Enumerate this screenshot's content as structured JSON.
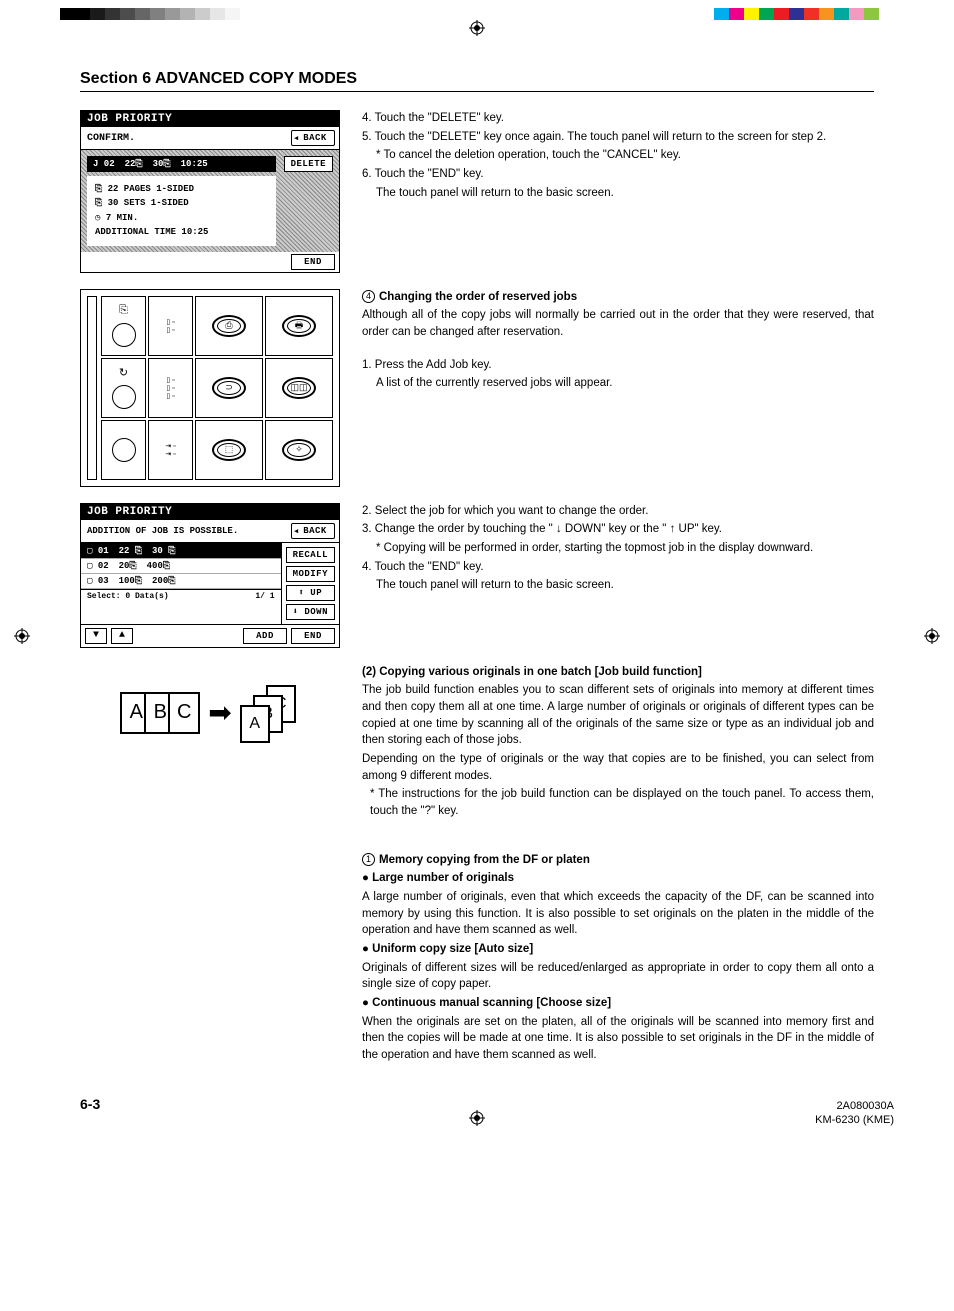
{
  "colorbar": {
    "left": [
      "#000000",
      "#000000",
      "#1a1a1a",
      "#333333",
      "#4d4d4d",
      "#666666",
      "#808080",
      "#999999",
      "#b3b3b3",
      "#cccccc",
      "#e6e6e6",
      "#f5f5f5",
      "#ffffff",
      "#ffffff"
    ],
    "right": [
      "#00aeef",
      "#ec008c",
      "#fff200",
      "#00a651",
      "#ed1c24",
      "#2e3192",
      "#ee3124",
      "#f7941d",
      "#00a99d",
      "#f49ac1",
      "#8dc63f",
      "#ffffff"
    ]
  },
  "section_title": "Section 6  ADVANCED COPY MODES",
  "lcd1": {
    "header": "JOB  PRIORITY",
    "subhead": "CONFIRM.",
    "back": "BACK",
    "row": {
      "j": "J 02",
      "p": "22⎘",
      "s": "30⎘",
      "t": "10:25"
    },
    "delete_btn": "DELETE",
    "info": {
      "l1": "⎘  22 PAGES     1-SIDED",
      "l2": "⎘  30 SETS       1-SIDED",
      "l3": "◷   7 MIN.",
      "l4": "ADDITIONAL TIME  10:25"
    },
    "end_btn": "END"
  },
  "steps_a": {
    "s4": "4. Touch the \"DELETE\" key.",
    "s5": "5. Touch the \"DELETE\" key once again. The touch panel will return to the screen for step 2.",
    "s5n": "* To cancel the deletion operation, touch the \"CANCEL\" key.",
    "s6": "6. Touch the \"END\" key.",
    "s6n": "The touch panel will return to the basic screen."
  },
  "sec4": {
    "num": "4",
    "title": "Changing the order of reserved jobs",
    "p1": "Although all of the copy jobs will normally be carried out in the order that they were reserved, that order can be changed after reservation.",
    "s1": "1. Press the Add Job key.",
    "s1n": "A list of the currently reserved jobs will appear."
  },
  "lcd2": {
    "header": "JOB  PRIORITY",
    "subhead": "ADDITION OF JOB IS POSSIBLE.",
    "back": "BACK",
    "rows": [
      {
        "id": "▢ 01",
        "a": "22 ⎘",
        "b": "30 ⎘",
        "sel": true
      },
      {
        "id": "▢ 02",
        "a": "20⎘",
        "b": "400⎘",
        "sel": false
      },
      {
        "id": "▢ 03",
        "a": "100⎘",
        "b": "200⎘",
        "sel": false
      }
    ],
    "btns": {
      "recall": "RECALL",
      "modify": "MODIFY",
      "up": "⬆  UP",
      "down": "⬇ DOWN",
      "end": "END",
      "add": "ADD"
    },
    "select_line": {
      "l": "Select:    0 Data(s)",
      "r": "1/ 1"
    }
  },
  "steps_b": {
    "s2": "2. Select the job for which you want to change the order.",
    "s3": "3. Change the order by touching the \" ↓  DOWN\" key or the \" ↑  UP\" key.",
    "s3n": "* Copying will be performed in order, starting the topmost job in the display downward.",
    "s4": "4. Touch the \"END\" key.",
    "s4n": "The touch panel will return to the basic screen."
  },
  "sec2": {
    "title": "(2) Copying various originals in one batch [Job build function]",
    "p1": "The job build function enables you to scan different sets of originals into memory at different times and then copy them all at one time. A large number of originals or originals of different types can be copied at one time by scanning all of the originals of the same size or type as an individual job and then storing each of those jobs.",
    "p2": "Depending on the type of originals or the way that copies are to be finished, you can select from among 9 different modes.",
    "p3": "* The instructions for the job build function can be displayed on the touch panel. To access them, touch the \"?\" key."
  },
  "abc": {
    "a": "A",
    "b": "B",
    "c": "C"
  },
  "sec1": {
    "num": "1",
    "title": "Memory copying from the DF or platen",
    "b1": "● Large number of originals",
    "p1": "A large number of originals, even that which exceeds the capacity of the DF, can be scanned into memory by using this function. It is also possible to set originals on the platen in the middle of the operation and have them scanned as well.",
    "b2": "● Uniform copy size [Auto size]",
    "p2": "Originals of different sizes will be reduced/enlarged as appropriate in order to copy them all onto a single size of copy paper.",
    "b3": "● Continuous manual scanning [Choose size]",
    "p3": "When the originals are set on the platen, all of the originals will be scanned into memory first and then the copies will be made at one time. It is also possible to set originals in the DF in the middle of the operation and have them scanned as well."
  },
  "page_num": "6-3",
  "doc_id": {
    "l1": "2A080030A",
    "l2": "KM-6230 (KME)"
  }
}
